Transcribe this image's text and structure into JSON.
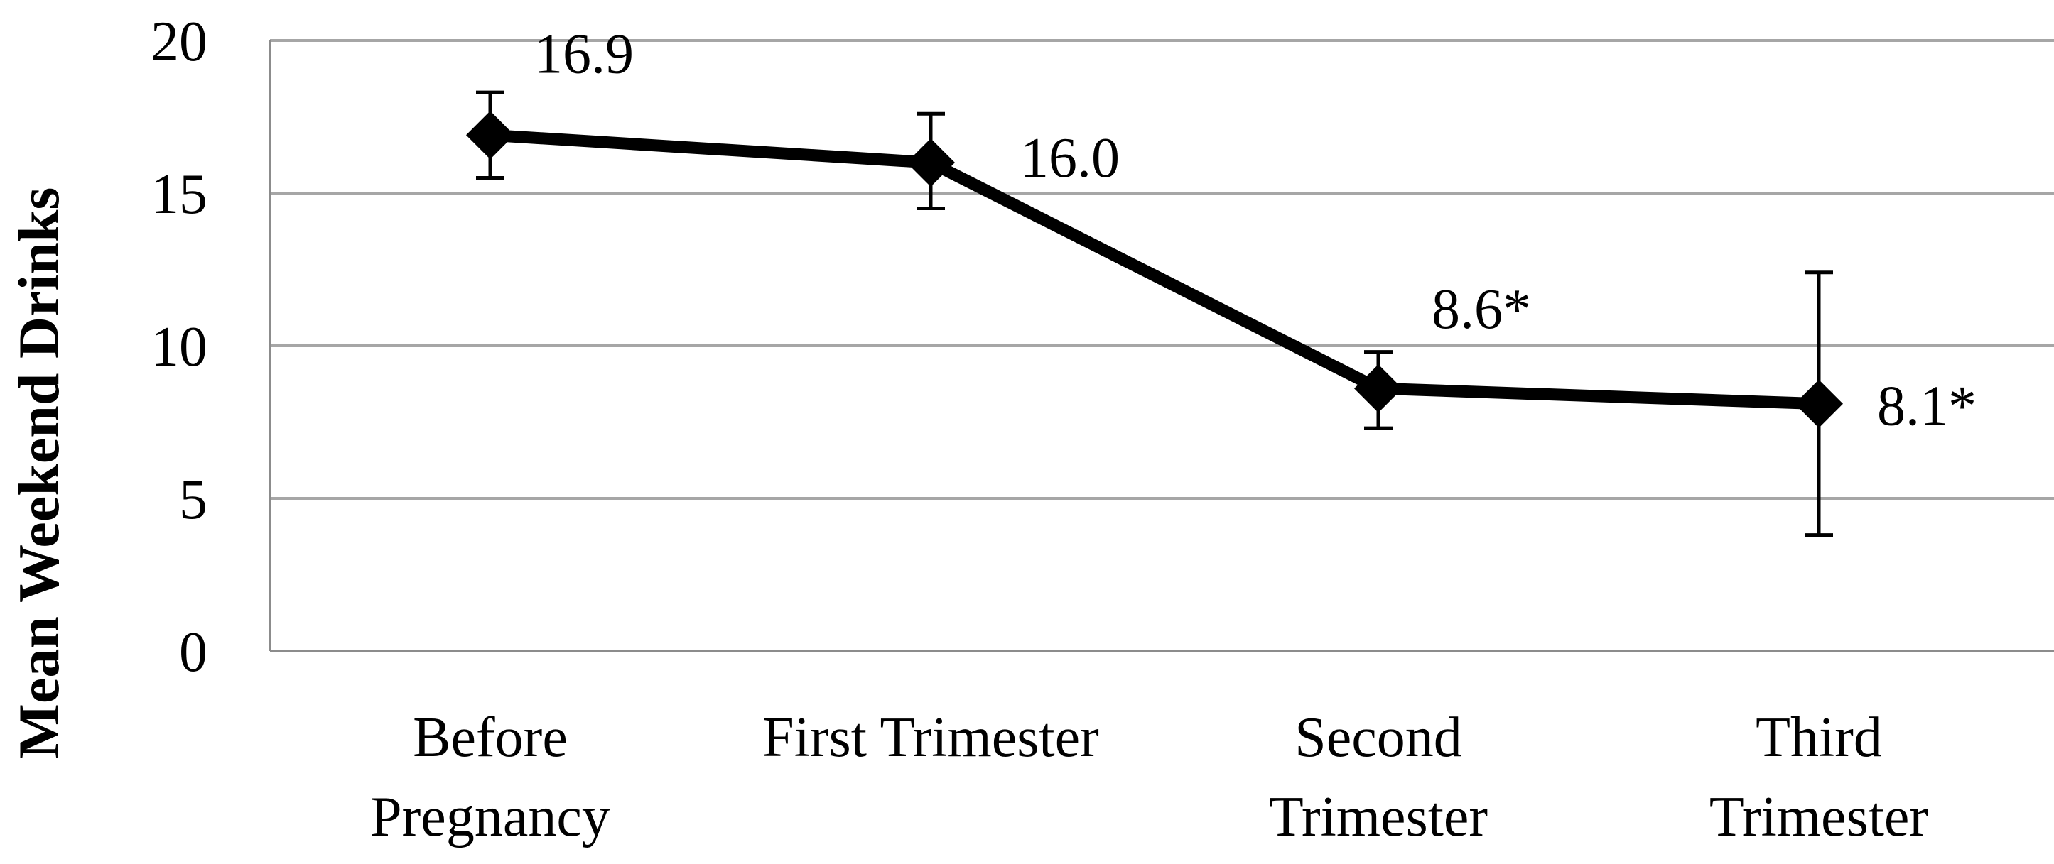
{
  "chart_data": {
    "type": "line",
    "title": "",
    "xlabel": "",
    "ylabel": "Mean Weekend Drinks",
    "ylim": [
      0,
      20
    ],
    "yticks": [
      0,
      5,
      10,
      15,
      20
    ],
    "grid": true,
    "categories": [
      [
        "Before",
        "Pregnancy"
      ],
      [
        "First Trimester"
      ],
      [
        "Second",
        "Trimester"
      ],
      [
        "Third",
        "Trimester"
      ]
    ],
    "series": [
      {
        "values": [
          16.9,
          16.0,
          8.6,
          8.1
        ],
        "error_low": [
          15.5,
          14.5,
          7.3,
          3.8
        ],
        "error_high": [
          18.3,
          17.6,
          9.8,
          12.4
        ],
        "data_labels": [
          "16.9",
          "16.0",
          "8.6*",
          "8.1*"
        ],
        "marker": "diamond"
      }
    ],
    "colors": {
      "line": "#000000",
      "grid": "#a6a6a6",
      "axis": "#8c8c8c"
    }
  }
}
